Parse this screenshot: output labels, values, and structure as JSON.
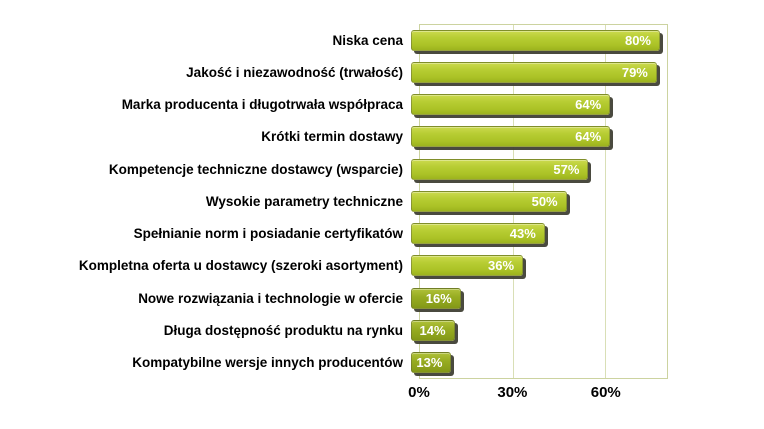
{
  "chart_data": {
    "type": "bar",
    "orientation": "horizontal",
    "xlabel": "",
    "ylabel": "",
    "xlim": [
      0,
      80
    ],
    "x_ticks": [
      "0%",
      "30%",
      "60%"
    ],
    "x_tick_values": [
      0,
      30,
      60
    ],
    "grid": "vertical",
    "legend": "none",
    "categories": [
      "Niska cena",
      "Jakość i niezawodność (trwałość)",
      "Marka producenta i długotrwała współpraca",
      "Krótki termin dostawy",
      "Kompetencje techniczne dostawcy (wsparcie)",
      "Wysokie parametry techniczne",
      "Spełnianie norm i posiadanie certyfikatów",
      "Kompletna oferta u dostawcy (szeroki asortyment)",
      "Nowe rozwiązania i technologie w ofercie",
      "Długa dostępność produktu na rynku",
      "Kompatybilne wersje innych producentów"
    ],
    "values": [
      80,
      79,
      64,
      64,
      57,
      50,
      43,
      36,
      16,
      14,
      13
    ],
    "value_labels": [
      "80%",
      "79%",
      "64%",
      "64%",
      "57%",
      "50%",
      "43%",
      "36%",
      "16%",
      "14%",
      "13%"
    ],
    "bar_shades": [
      "normal",
      "normal",
      "normal",
      "normal",
      "normal",
      "normal",
      "normal",
      "normal",
      "dark",
      "dark",
      "dark"
    ],
    "colors": {
      "bar_fill": "#b4cb30",
      "bar_fill_light": "#ccda4e",
      "bar_fill_dark_variant": "#92a81f",
      "bar_shadow": "#42423a",
      "gridline": "#d9dfb6",
      "plot_border": "#ccd3a0",
      "label_text": "#000000",
      "value_text": "#ffffff",
      "background": "#ffffff"
    }
  }
}
